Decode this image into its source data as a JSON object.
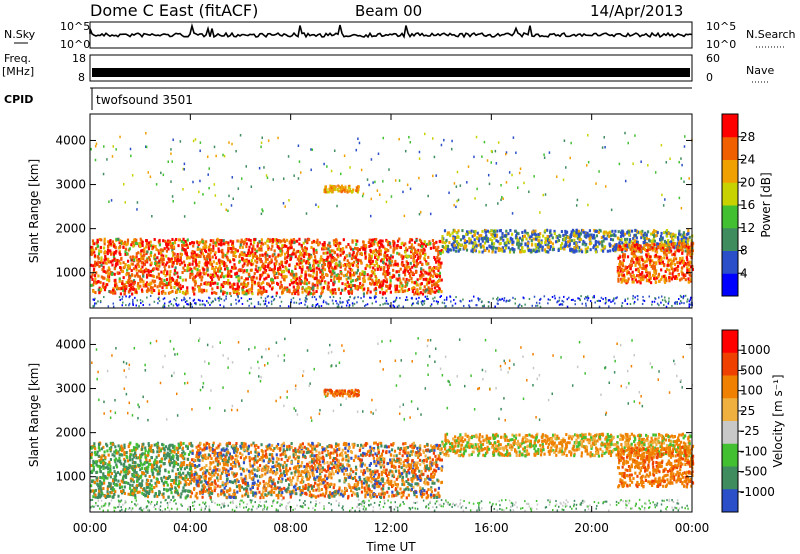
{
  "header": {
    "title": "Dome C East (fitACF)",
    "beam": "Beam 00",
    "date": "14/Apr/2013"
  },
  "strips": {
    "nsky": {
      "label": "N.Sky",
      "left_ticks": [
        "10^5",
        "10^0"
      ],
      "right_ticks": [
        "10^5",
        "10^0"
      ],
      "right_label": "N.Search"
    },
    "freq": {
      "label_line1": "Freq.",
      "label_line2": "[MHz]",
      "left_ticks": [
        "18",
        "8"
      ],
      "right_ticks": [
        "60",
        "0"
      ],
      "right_label": "Nave"
    },
    "cpid": {
      "label": "CPID",
      "value": "twofsound 3501"
    }
  },
  "x_axis": {
    "label": "Time UT",
    "ticks": [
      "00:00",
      "04:00",
      "08:00",
      "12:00",
      "16:00",
      "20:00",
      "00:00"
    ]
  },
  "colors": {
    "scatter_power": [
      "#0000ff",
      "#2b4fc8",
      "#3f8c5e",
      "#42c032",
      "#c8d200",
      "#f0a000",
      "#f06000",
      "#ff0000"
    ],
    "scatter_velocity": [
      "#ff0000",
      "#f04000",
      "#f08000",
      "#f0b040",
      "#c8c8c8",
      "#42c032",
      "#3f8c5e",
      "#2b4fc8"
    ]
  },
  "chart_data": [
    {
      "type": "heatmap",
      "name": "power-panel",
      "ylabel": "Slant Range [km]",
      "yticks": [
        1000,
        2000,
        3000,
        4000
      ],
      "ylim": [
        200,
        4600
      ],
      "xlim_hours": [
        0,
        24
      ],
      "colorbar": {
        "label": "Power [dB]",
        "ticks": [
          "28",
          "24",
          "20",
          "16",
          "12",
          "8",
          "4"
        ],
        "range": [
          0,
          32
        ]
      },
      "description_bands": [
        {
          "t_start": 0,
          "t_end": 14,
          "range_km": [
            500,
            1800
          ],
          "value": "high"
        },
        {
          "t_start": 14,
          "t_end": 24,
          "range_km": [
            1200,
            2200
          ],
          "value": "mixed"
        }
      ]
    },
    {
      "type": "heatmap",
      "name": "velocity-panel",
      "ylabel": "Slant Range [km]",
      "yticks": [
        1000,
        2000,
        3000,
        4000
      ],
      "ylim": [
        200,
        4600
      ],
      "xlim_hours": [
        0,
        24
      ],
      "colorbar": {
        "label": "Velocity [m s⁻¹]",
        "ticks": [
          "1000",
          "500",
          "100",
          "25",
          "-25",
          "-100",
          "-500",
          "-1000"
        ],
        "range": [
          -1000,
          1000
        ]
      }
    }
  ]
}
